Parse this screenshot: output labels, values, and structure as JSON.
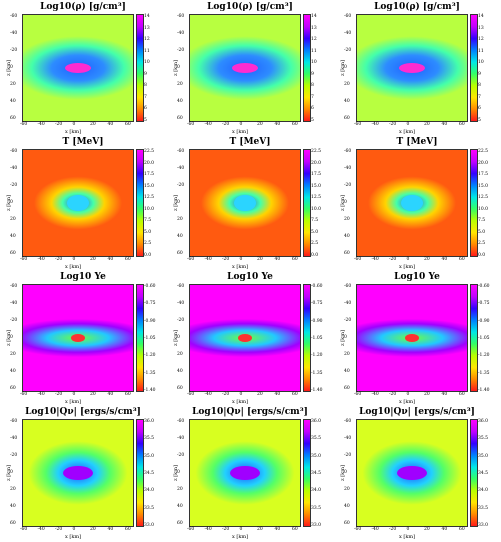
{
  "panels": [
    {
      "title": "Log10(ρ) [g/cm³]",
      "ylabel": "z [km]",
      "xlabel": "x [km]",
      "xticks": [
        "-60",
        "-40",
        "-20",
        "0",
        "20",
        "40",
        "60"
      ],
      "yticks": [
        "-60",
        "-40",
        "-20",
        "0",
        "20",
        "40",
        "60"
      ],
      "cticks": [
        "14",
        "13",
        "12",
        "11",
        "10",
        "9",
        "8",
        "7",
        "6",
        "5"
      ],
      "colormap": "density"
    },
    {
      "title": "Log10(ρ) [g/cm³]",
      "ylabel": "z [km]",
      "xlabel": "x [km]",
      "xticks": [
        "-60",
        "-40",
        "-20",
        "0",
        "20",
        "40",
        "60"
      ],
      "yticks": [
        "-60",
        "-40",
        "-20",
        "0",
        "20",
        "40",
        "60"
      ],
      "cticks": [
        "14",
        "13",
        "12",
        "11",
        "10",
        "9",
        "8",
        "7",
        "6",
        "5"
      ],
      "colormap": "density"
    },
    {
      "title": "Log10(ρ) [g/cm³]",
      "ylabel": "z [km]",
      "xlabel": "x [km]",
      "xticks": [
        "-60",
        "-40",
        "-20",
        "0",
        "20",
        "40",
        "60"
      ],
      "yticks": [
        "-60",
        "-40",
        "-20",
        "0",
        "20",
        "40",
        "60"
      ],
      "cticks": [
        "14",
        "13",
        "12",
        "11",
        "10",
        "9",
        "8",
        "7",
        "6",
        "5"
      ],
      "colormap": "density"
    },
    {
      "title": "T [MeV]",
      "ylabel": "z [km]",
      "xlabel": "x [km]",
      "xticks": [
        "-60",
        "-40",
        "-20",
        "0",
        "20",
        "40",
        "60"
      ],
      "yticks": [
        "-60",
        "-40",
        "-20",
        "0",
        "20",
        "40",
        "60"
      ],
      "cticks": [
        "22.5",
        "20.0",
        "17.5",
        "15.0",
        "12.5",
        "10.0",
        "7.5",
        "5.0",
        "2.5",
        "0.0"
      ],
      "colormap": "temperature"
    },
    {
      "title": "T [MeV]",
      "ylabel": "z [km]",
      "xlabel": "x [km]",
      "xticks": [
        "-60",
        "-40",
        "-20",
        "0",
        "20",
        "40",
        "60"
      ],
      "yticks": [
        "-60",
        "-40",
        "-20",
        "0",
        "20",
        "40",
        "60"
      ],
      "cticks": [
        "22.5",
        "20.0",
        "17.5",
        "15.0",
        "12.5",
        "10.0",
        "7.5",
        "5.0",
        "2.5",
        "0.0"
      ],
      "colormap": "temperature"
    },
    {
      "title": "T [MeV]",
      "ylabel": "z [km]",
      "xlabel": "x [km]",
      "xticks": [
        "-60",
        "-40",
        "-20",
        "0",
        "20",
        "40",
        "60"
      ],
      "yticks": [
        "-60",
        "-40",
        "-20",
        "0",
        "20",
        "40",
        "60"
      ],
      "cticks": [
        "22.5",
        "20.0",
        "17.5",
        "15.0",
        "12.5",
        "10.0",
        "7.5",
        "5.0",
        "2.5",
        "0.0"
      ],
      "colormap": "temperature"
    },
    {
      "title": "Log10 Ye",
      "ylabel": "z [km]",
      "xlabel": "x [km]",
      "xticks": [
        "-60",
        "-40",
        "-20",
        "0",
        "20",
        "40",
        "60"
      ],
      "yticks": [
        "-60",
        "-40",
        "-20",
        "0",
        "20",
        "40",
        "60"
      ],
      "cticks": [
        "-0.60",
        "-0.75",
        "-0.90",
        "-1.05",
        "-1.20",
        "-1.35",
        "-1.40"
      ],
      "colormap": "ye"
    },
    {
      "title": "Log10 Ye",
      "ylabel": "z [km]",
      "xlabel": "x [km]",
      "xticks": [
        "-60",
        "-40",
        "-20",
        "0",
        "20",
        "40",
        "60"
      ],
      "yticks": [
        "-60",
        "-40",
        "-20",
        "0",
        "20",
        "40",
        "60"
      ],
      "cticks": [
        "-0.60",
        "-0.75",
        "-0.90",
        "-1.05",
        "-1.20",
        "-1.35",
        "-1.40"
      ],
      "colormap": "ye"
    },
    {
      "title": "Log10 Ye",
      "ylabel": "z [km]",
      "xlabel": "x [km]",
      "xticks": [
        "-60",
        "-40",
        "-20",
        "0",
        "20",
        "40",
        "60"
      ],
      "yticks": [
        "-60",
        "-40",
        "-20",
        "0",
        "20",
        "40",
        "60"
      ],
      "cticks": [
        "-0.60",
        "-0.75",
        "-0.90",
        "-1.05",
        "-1.20",
        "-1.35",
        "-1.40"
      ],
      "colormap": "ye"
    },
    {
      "title": "Log10|Qν| [ergs/s/cm³]",
      "ylabel": "z [km]",
      "xlabel": "x [km]",
      "xticks": [
        "-60",
        "-40",
        "-20",
        "0",
        "20",
        "40",
        "60"
      ],
      "yticks": [
        "-60",
        "-40",
        "-20",
        "0",
        "20",
        "40",
        "60"
      ],
      "cticks": [
        "36.0",
        "35.5",
        "35.0",
        "34.5",
        "34.0",
        "33.5",
        "33.0"
      ],
      "colormap": "qnu"
    },
    {
      "title": "Log10|Qν| [ergs/s/cm³]",
      "ylabel": "z [km]",
      "xlabel": "x [km]",
      "xticks": [
        "-60",
        "-40",
        "-20",
        "0",
        "20",
        "40",
        "60"
      ],
      "yticks": [
        "-60",
        "-40",
        "-20",
        "0",
        "20",
        "40",
        "60"
      ],
      "cticks": [
        "36.0",
        "35.5",
        "35.0",
        "34.5",
        "34.0",
        "33.5",
        "33.0"
      ],
      "colormap": "qnu"
    },
    {
      "title": "Log10|Qν| [ergs/s/cm³]",
      "ylabel": "z [km]",
      "xlabel": "x [km]",
      "xticks": [
        "-60",
        "-40",
        "-20",
        "0",
        "20",
        "40",
        "60"
      ],
      "yticks": [
        "-60",
        "-40",
        "-20",
        "0",
        "20",
        "40",
        "60"
      ],
      "cticks": [
        "36.0",
        "35.5",
        "35.0",
        "34.5",
        "34.0",
        "33.5",
        "33.0"
      ],
      "colormap": "qnu"
    }
  ]
}
